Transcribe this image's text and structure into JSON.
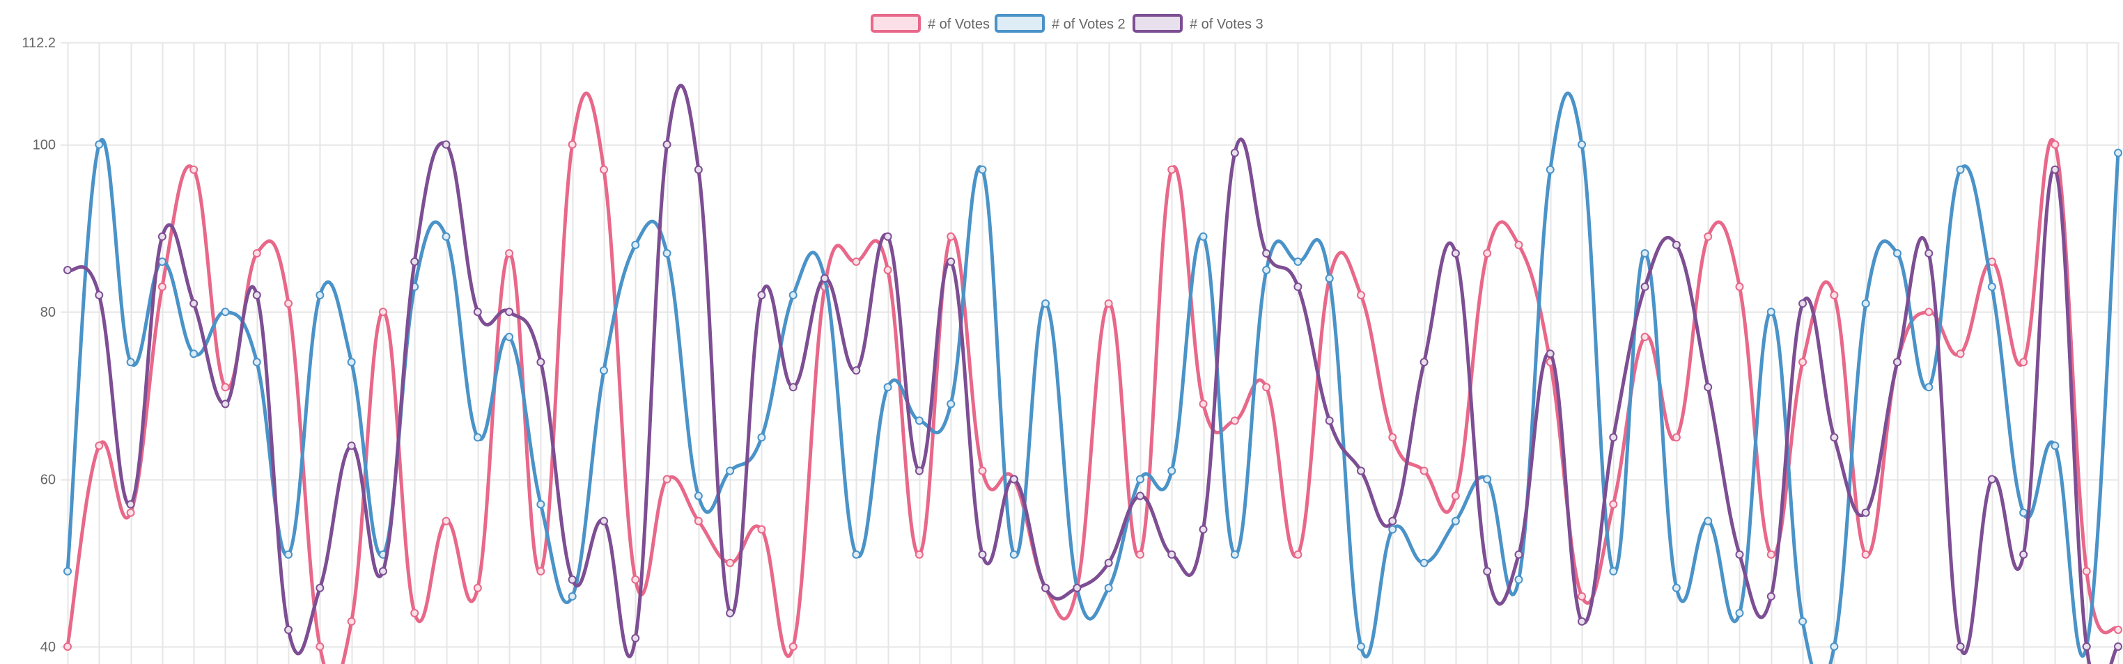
{
  "chart_data": {
    "type": "line",
    "title": "",
    "xlabel": "",
    "ylabel": "",
    "ylim": [
      37.5,
      112.2
    ],
    "yticks": [
      {
        "value": 40,
        "label": "40"
      },
      {
        "value": 60,
        "label": "60"
      },
      {
        "value": 80,
        "label": "80"
      },
      {
        "value": 100,
        "label": "100"
      },
      {
        "value": 112.2,
        "label": "112.2"
      }
    ],
    "grid": true,
    "legend_position": "top",
    "point_count": 66,
    "series": [
      {
        "name": "# of Votes",
        "color": "#e8688a",
        "fill": "#fbe0e7",
        "values": [
          40,
          64,
          56,
          83,
          97,
          71,
          87,
          81,
          40,
          43,
          80,
          44,
          55,
          47,
          87,
          49,
          100,
          97,
          48,
          60,
          55,
          50,
          54,
          40,
          83,
          86,
          85,
          51,
          89,
          61,
          60,
          47,
          47,
          81,
          51,
          97,
          69,
          67,
          71,
          51,
          84,
          82,
          65,
          61,
          58,
          87,
          88,
          74,
          46,
          57,
          77,
          65,
          89,
          83,
          51,
          74,
          82,
          51,
          74,
          80,
          75,
          86,
          74,
          100,
          49,
          42
        ]
      },
      {
        "name": "# of Votes 2",
        "color": "#4a93c8",
        "fill": "#deecf6",
        "values": [
          49,
          100,
          74,
          86,
          75,
          80,
          74,
          51,
          82,
          74,
          51,
          83,
          89,
          65,
          77,
          57,
          46,
          73,
          88,
          87,
          58,
          61,
          65,
          82,
          84,
          51,
          71,
          67,
          69,
          97,
          51,
          81,
          47,
          47,
          60,
          61,
          89,
          51,
          85,
          86,
          84,
          40,
          54,
          50,
          55,
          60,
          48,
          97,
          100,
          49,
          87,
          47,
          55,
          44,
          80,
          43,
          40,
          81,
          87,
          71,
          97,
          83,
          56,
          64,
          40,
          99
        ]
      },
      {
        "name": "# of Votes 3",
        "color": "#7d4e93",
        "fill": "#e8e0ec",
        "values": [
          85,
          82,
          57,
          89,
          81,
          69,
          82,
          42,
          47,
          64,
          49,
          86,
          100,
          80,
          80,
          74,
          48,
          55,
          41,
          100,
          97,
          44,
          82,
          71,
          84,
          73,
          89,
          61,
          86,
          51,
          60,
          47,
          47,
          50,
          58,
          51,
          54,
          99,
          87,
          83,
          67,
          61,
          55,
          74,
          87,
          49,
          51,
          75,
          43,
          65,
          83,
          88,
          71,
          51,
          46,
          81,
          65,
          56,
          74,
          87,
          40,
          60,
          51,
          97,
          40,
          40
        ]
      }
    ]
  }
}
